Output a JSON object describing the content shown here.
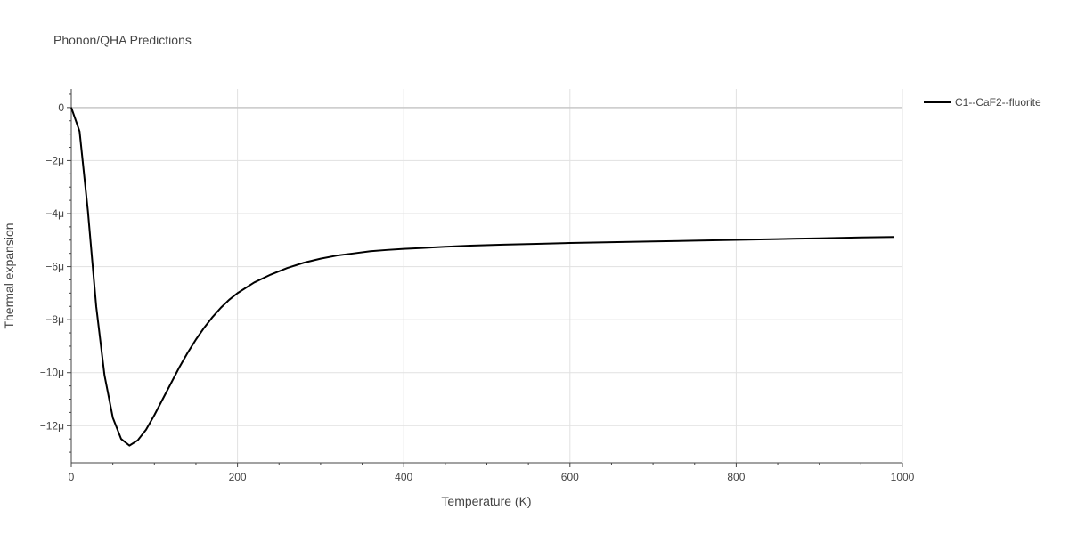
{
  "chart_data": {
    "type": "line",
    "title": "Phonon/QHA Predictions",
    "xlabel": "Temperature (K)",
    "ylabel": "Thermal expansion",
    "xlim": [
      0,
      1000
    ],
    "ylim": [
      -13.4,
      0.7
    ],
    "y_unit_scale": "1e-6",
    "x_ticks": [
      0,
      200,
      400,
      600,
      800,
      1000
    ],
    "x_tick_labels": [
      "0",
      "200",
      "400",
      "600",
      "800",
      "1000"
    ],
    "y_ticks": [
      0,
      -2,
      -4,
      -6,
      -8,
      -10,
      -12
    ],
    "y_tick_labels": [
      "0",
      "−2μ",
      "−4μ",
      "−6μ",
      "−8μ",
      "−10μ",
      "−12μ"
    ],
    "grid": true,
    "legend_position": "top-right",
    "series": [
      {
        "name": "C1--CaF2--fluorite",
        "color": "#000000",
        "x": [
          0,
          10,
          20,
          30,
          40,
          50,
          60,
          70,
          80,
          90,
          100,
          110,
          120,
          130,
          140,
          150,
          160,
          170,
          180,
          190,
          200,
          220,
          240,
          260,
          280,
          300,
          320,
          340,
          360,
          380,
          400,
          420,
          450,
          480,
          520,
          560,
          600,
          650,
          700,
          750,
          800,
          850,
          900,
          950,
          990
        ],
        "y": [
          0,
          -0.9,
          -3.9,
          -7.5,
          -10.1,
          -11.7,
          -12.5,
          -12.75,
          -12.55,
          -12.15,
          -11.6,
          -11.0,
          -10.4,
          -9.8,
          -9.25,
          -8.75,
          -8.3,
          -7.9,
          -7.55,
          -7.25,
          -7.0,
          -6.6,
          -6.3,
          -6.05,
          -5.85,
          -5.7,
          -5.58,
          -5.5,
          -5.42,
          -5.37,
          -5.33,
          -5.3,
          -5.25,
          -5.21,
          -5.17,
          -5.14,
          -5.11,
          -5.08,
          -5.05,
          -5.02,
          -4.99,
          -4.96,
          -4.93,
          -4.9,
          -4.88
        ]
      }
    ]
  }
}
